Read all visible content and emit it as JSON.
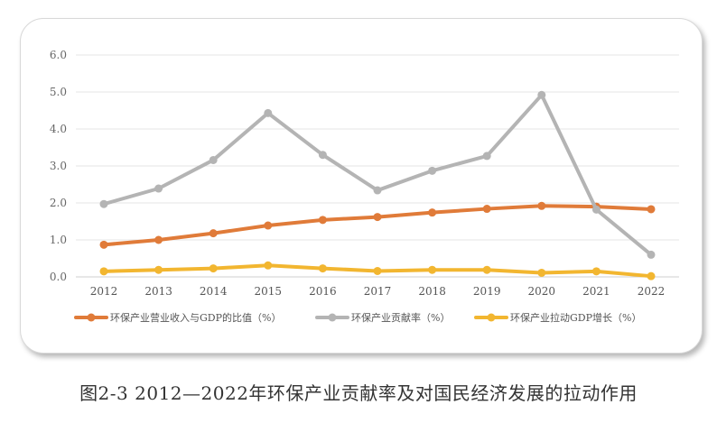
{
  "caption": "图2-3 2012—2022年环保产业贡献率及对国民经济发展的拉动作用",
  "chart_data": {
    "type": "line",
    "categories": [
      "2012",
      "2013",
      "2014",
      "2015",
      "2016",
      "2017",
      "2018",
      "2019",
      "2020",
      "2021",
      "2022"
    ],
    "yticks": [
      "0.0",
      "1.0",
      "2.0",
      "3.0",
      "4.0",
      "5.0",
      "6.0"
    ],
    "ylim": [
      0,
      6
    ],
    "grid": true,
    "legend_position": "bottom",
    "series": [
      {
        "name": "环保产业营业收入与GDP的比值（%）",
        "color": "#e07b39",
        "values": [
          0.87,
          1.0,
          1.18,
          1.39,
          1.54,
          1.62,
          1.74,
          1.84,
          1.92,
          1.9,
          1.83
        ]
      },
      {
        "name": "环保产业贡献率（%）",
        "color": "#b4b4b4",
        "values": [
          1.97,
          2.39,
          3.16,
          4.43,
          3.3,
          2.34,
          2.87,
          3.27,
          4.92,
          1.82,
          0.6
        ]
      },
      {
        "name": "环保产业拉动GDP增长（%）",
        "color": "#f2b630",
        "values": [
          0.15,
          0.19,
          0.23,
          0.31,
          0.23,
          0.16,
          0.19,
          0.19,
          0.11,
          0.15,
          0.02
        ]
      }
    ]
  }
}
